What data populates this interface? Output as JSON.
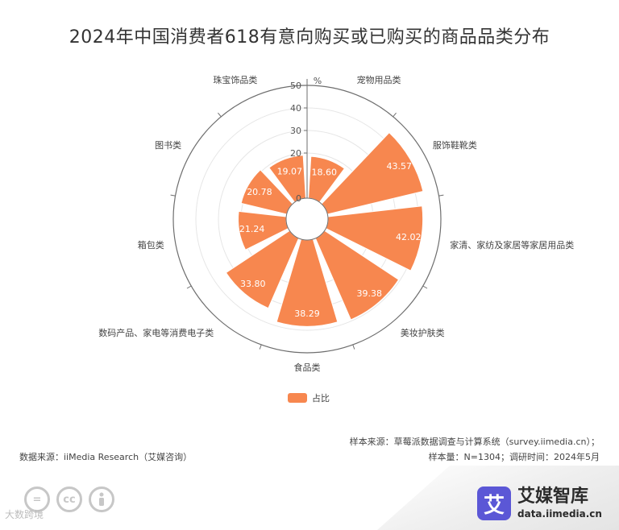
{
  "title": "2024年中国消费者618有意向购买或已购买的商品品类分布",
  "chart_data": {
    "type": "bar",
    "polar": true,
    "title": "2024年中国消费者618有意向购买或已购买的商品品类分布",
    "unit": "%",
    "rlim": [
      0,
      50
    ],
    "rticks": [
      0,
      20,
      30,
      40,
      50
    ],
    "categories": [
      "宠物用品类",
      "服饰鞋靴类",
      "家清、家纺及家居等家居用品类",
      "美妆护肤类",
      "食品类",
      "数码产品、家电等消费电子类",
      "箱包类",
      "图书类",
      "珠宝饰品类"
    ],
    "series": [
      {
        "name": "占比",
        "color": "#f7874f",
        "values": [
          18.6,
          43.57,
          42.02,
          39.38,
          38.29,
          33.8,
          21.24,
          20.78,
          19.07
        ]
      }
    ],
    "legend_position": "bottom"
  },
  "legend": {
    "label": "占比",
    "color": "#f7874f"
  },
  "footer": {
    "source_left": "数据来源：iiMedia Research（艾媒咨询）",
    "sample_source": "样本来源：草莓派数据调查与计算系统（survey.iimedia.cn）；",
    "sample_size": "样本量：N=1304；调研时间：2024年5月"
  },
  "brand": {
    "logo_char": "艾",
    "name": "艾媒智库",
    "url": "data.iimedia.cn",
    "watermark": "大数跨境"
  },
  "license_icons": [
    "cc-nd-icon",
    "cc-icon",
    "cc-by-icon"
  ]
}
